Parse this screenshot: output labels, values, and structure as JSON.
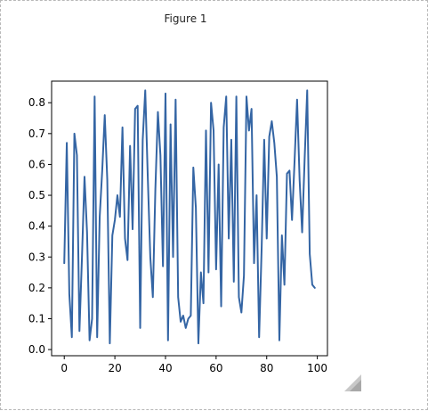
{
  "window": {
    "title": "Figure 1"
  },
  "colors": {
    "line": "#3465a4",
    "axes": "#000000",
    "background": "#ffffff"
  },
  "icons": {
    "resize": "resize-grip-icon"
  },
  "chart_data": {
    "type": "line",
    "title": "",
    "xlabel": "",
    "ylabel": "",
    "xlim": [
      -5,
      104
    ],
    "ylim": [
      -0.02,
      0.87
    ],
    "xticks": [
      0,
      20,
      40,
      60,
      80,
      100
    ],
    "yticks": [
      0.0,
      0.1,
      0.2,
      0.3,
      0.4,
      0.5,
      0.6,
      0.7,
      0.8
    ],
    "grid": false,
    "legend": "none",
    "series": [
      {
        "x": [
          0,
          1,
          2,
          3,
          4,
          5,
          6,
          7,
          8,
          9,
          10,
          11,
          12,
          13,
          14,
          15,
          16,
          17,
          18,
          19,
          20,
          21,
          22,
          23,
          24,
          25,
          26,
          27,
          28,
          29,
          30,
          31,
          32,
          33,
          34,
          35,
          36,
          37,
          38,
          39,
          40,
          41,
          42,
          43,
          44,
          45,
          46,
          47,
          48,
          49,
          50,
          51,
          52,
          53,
          54,
          55,
          56,
          57,
          58,
          59,
          60,
          61,
          62,
          63,
          64,
          65,
          66,
          67,
          68,
          69,
          70,
          71,
          72,
          73,
          74,
          75,
          76,
          77,
          78,
          79,
          80,
          81,
          82,
          83,
          84,
          85,
          86,
          87,
          88,
          89,
          90,
          91,
          92,
          93,
          94,
          95,
          96,
          97,
          98,
          99
        ],
        "y": [
          0.28,
          0.67,
          0.18,
          0.04,
          0.7,
          0.63,
          0.06,
          0.3,
          0.56,
          0.38,
          0.03,
          0.1,
          0.82,
          0.04,
          0.43,
          0.58,
          0.76,
          0.55,
          0.02,
          0.37,
          0.42,
          0.5,
          0.43,
          0.72,
          0.36,
          0.29,
          0.66,
          0.39,
          0.78,
          0.79,
          0.07,
          0.68,
          0.84,
          0.56,
          0.3,
          0.17,
          0.52,
          0.77,
          0.63,
          0.27,
          0.83,
          0.03,
          0.73,
          0.3,
          0.81,
          0.17,
          0.09,
          0.11,
          0.07,
          0.1,
          0.11,
          0.59,
          0.46,
          0.02,
          0.25,
          0.15,
          0.71,
          0.25,
          0.8,
          0.71,
          0.26,
          0.6,
          0.14,
          0.72,
          0.82,
          0.36,
          0.68,
          0.22,
          0.82,
          0.17,
          0.12,
          0.24,
          0.82,
          0.71,
          0.78,
          0.28,
          0.5,
          0.04,
          0.33,
          0.68,
          0.36,
          0.69,
          0.74,
          0.67,
          0.56,
          0.03,
          0.37,
          0.21,
          0.57,
          0.58,
          0.42,
          0.61,
          0.81,
          0.55,
          0.38,
          0.62,
          0.84,
          0.31,
          0.21,
          0.2
        ]
      }
    ]
  }
}
